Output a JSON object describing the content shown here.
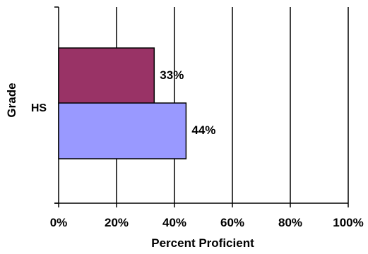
{
  "chart_data": {
    "type": "bar",
    "orientation": "horizontal",
    "categories": [
      "HS"
    ],
    "series": [
      {
        "values": [
          33
        ],
        "color": "#993366",
        "data_labels": [
          "33%"
        ]
      },
      {
        "values": [
          44
        ],
        "color": "#9999ff",
        "data_labels": [
          "44%"
        ]
      }
    ],
    "title": "",
    "xlabel": "Percent Proficient",
    "ylabel": "Grade",
    "xlim": [
      0,
      100
    ],
    "xticks": [
      0,
      20,
      40,
      60,
      80,
      100
    ],
    "xtick_labels": [
      "0%",
      "20%",
      "40%",
      "60%",
      "80%",
      "100%"
    ],
    "grid": "vertical",
    "legend": "none"
  }
}
